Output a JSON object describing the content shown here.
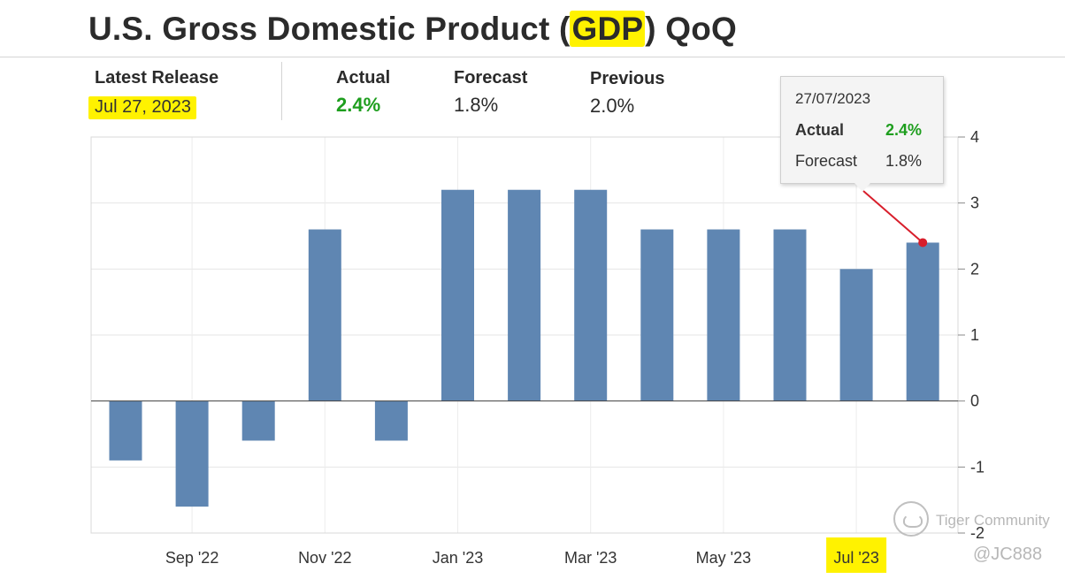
{
  "title": {
    "before": "U.S. Gross Domestic Product (",
    "highlight": "GDP",
    "after": ") QoQ"
  },
  "release": {
    "label": "Latest Release",
    "date": "Jul 27, 2023"
  },
  "stats": {
    "actual_label": "Actual",
    "actual_value": "2.4%",
    "forecast_label": "Forecast",
    "forecast_value": "1.8%",
    "previous_label": "Previous",
    "previous_value": "2.0%"
  },
  "tooltip": {
    "date": "27/07/2023",
    "actual_label": "Actual",
    "actual_value": "2.4%",
    "forecast_label": "Forecast",
    "forecast_value": "1.8%"
  },
  "colors": {
    "bar": "#5f86b2",
    "highlight": "#fff200",
    "actual_green": "#1e9e1e",
    "pointer": "#d81e2b"
  },
  "watermark": {
    "brand": "Tiger Community",
    "handle": "@JC888"
  },
  "chart_data": {
    "type": "bar",
    "values": [
      -0.9,
      -1.6,
      -0.6,
      2.6,
      -0.6,
      3.2,
      3.2,
      3.2,
      2.6,
      2.6,
      2.6,
      2.0,
      2.4
    ],
    "x_tick_labels": [
      "Sep '22",
      "Nov '22",
      "Jan '23",
      "Mar '23",
      "May '23",
      "Jul '23"
    ],
    "highlighted_tick": "Jul '23",
    "y_ticks": [
      4,
      3,
      2,
      1,
      0,
      -1,
      -2
    ],
    "ylim": [
      -2,
      4
    ],
    "y_axis_side": "right",
    "grid": true,
    "highlighted_point_index": 12
  }
}
